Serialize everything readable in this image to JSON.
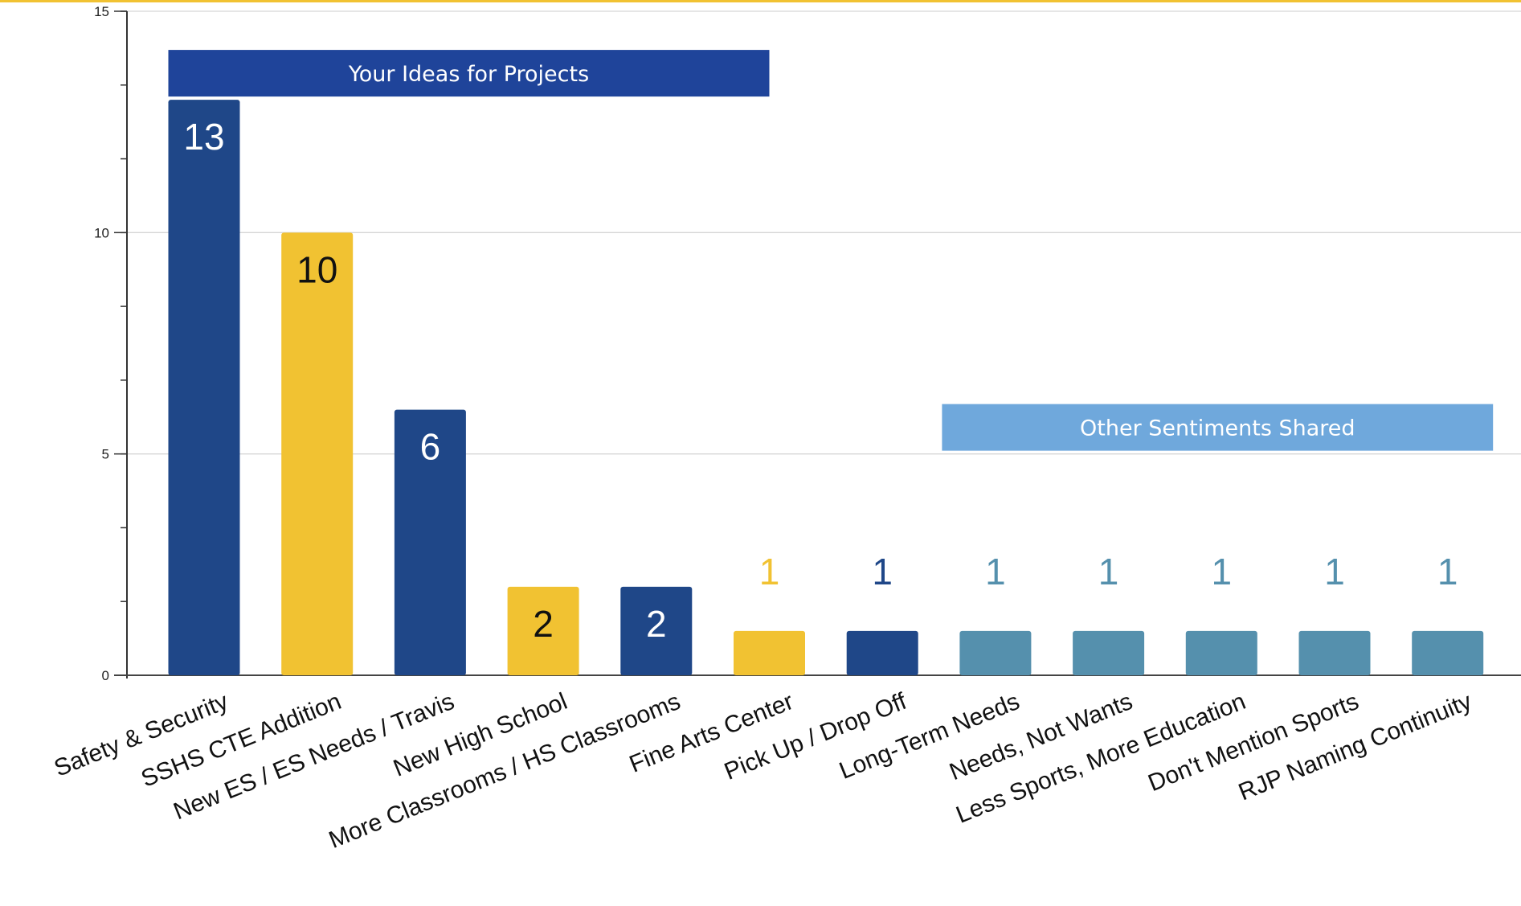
{
  "chart_data": {
    "type": "bar",
    "categories": [
      "Safety & Security",
      "SSHS CTE Addition",
      "New ES / ES Needs / Travis",
      "New High School",
      "More Classrooms / HS Classrooms",
      "Fine Arts Center",
      "Pick Up / Drop Off",
      "Long-Term Needs",
      "Needs, Not Wants",
      "Less Sports, More Education",
      "Don't Mention Sports",
      "RJP Naming Continuity"
    ],
    "values": [
      13,
      10,
      6,
      2,
      2,
      1,
      1,
      1,
      1,
      1,
      1,
      1
    ],
    "bar_colors": [
      "#1f4788",
      "#f1c232",
      "#1f4788",
      "#f1c232",
      "#1f4788",
      "#f1c232",
      "#1f4788",
      "#5590ad",
      "#5590ad",
      "#5590ad",
      "#5590ad",
      "#5590ad"
    ],
    "label_colors": [
      "#ffffff",
      "#111111",
      "#ffffff",
      "#111111",
      "#ffffff",
      "#f1c232",
      "#1f4788",
      "#5590ad",
      "#5590ad",
      "#5590ad",
      "#5590ad",
      "#5590ad"
    ],
    "label_inside": [
      true,
      true,
      true,
      true,
      true,
      false,
      false,
      false,
      false,
      false,
      false,
      false
    ],
    "ylim": [
      0,
      15
    ],
    "major_ticks": [
      0,
      5,
      10,
      15
    ],
    "minor_tick_step": 1.666667,
    "grid": true,
    "title": "",
    "xlabel": "",
    "ylabel": "",
    "top_border_color": "#f1c232",
    "annotations": [
      {
        "text": "Your Ideas for Projects",
        "color": "#1f449a",
        "from_category": 0,
        "to_category": 5,
        "y": 13.6
      },
      {
        "text": "Other Sentiments Shared",
        "color": "#6fa8dc",
        "from_category": 7,
        "to_category": 11,
        "y": 5.6
      }
    ]
  }
}
